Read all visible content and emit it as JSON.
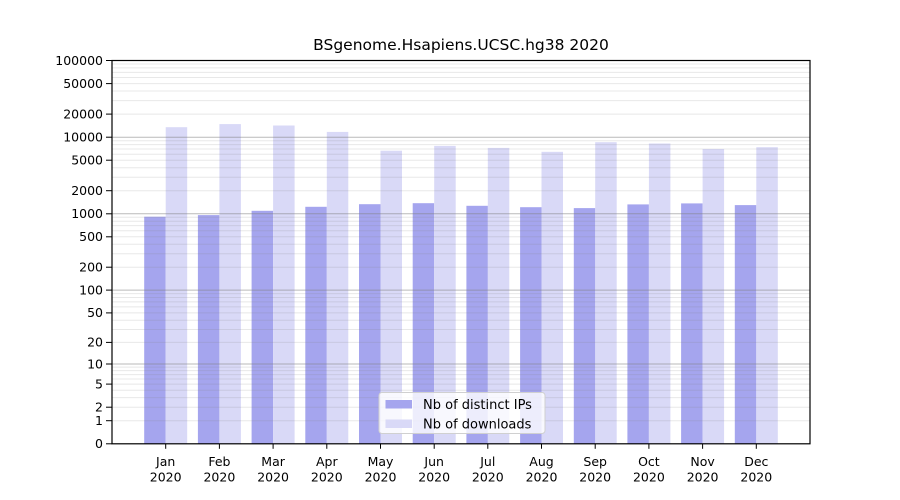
{
  "title": "BSgenome.Hsapiens.UCSC.hg38 2020",
  "colors": {
    "ips_bar": "#a5a5ee",
    "downloads_bar": "#d9d9f7",
    "grid_minor": "rgba(130,130,130,0.18)",
    "grid_major": "rgba(130,130,130,0.55)",
    "axis": "#000000",
    "legend_border": "#d0d0d0",
    "legend_bg": "rgba(255,255,255,0.8)"
  },
  "y_axis": {
    "ticks": [
      100000,
      50000,
      20000,
      10000,
      5000,
      2000,
      1000,
      500,
      200,
      100,
      50,
      20,
      10,
      5,
      2,
      1,
      0
    ],
    "scale": "log10(1+v)"
  },
  "legend": {
    "entries": [
      {
        "label": "Nb of distinct IPs",
        "color_key": "ips_bar"
      },
      {
        "label": "Nb of downloads",
        "color_key": "downloads_bar"
      }
    ]
  },
  "chart_data": {
    "type": "bar",
    "title": "BSgenome.Hsapiens.UCSC.hg38 2020",
    "categories": [
      "Jan 2020",
      "Feb 2020",
      "Mar 2020",
      "Apr 2020",
      "May 2020",
      "Jun 2020",
      "Jul 2020",
      "Aug 2020",
      "Sep 2020",
      "Oct 2020",
      "Nov 2020",
      "Dec 2020"
    ],
    "series": [
      {
        "name": "Nb of distinct IPs",
        "color": "#a5a5ee",
        "values": [
          915,
          960,
          1095,
          1235,
          1335,
          1375,
          1270,
          1220,
          1185,
          1325,
          1365,
          1300
        ]
      },
      {
        "name": "Nb of downloads",
        "color": "#d9d9f7",
        "values": [
          13500,
          14800,
          14200,
          11700,
          6650,
          7700,
          7250,
          6450,
          8600,
          8270,
          7000,
          7400
        ]
      }
    ],
    "yscale": "log1p",
    "ylim": [
      0,
      100000
    ],
    "xlabel": "",
    "ylabel": "",
    "grid": true,
    "legend_position": "bottom-center"
  }
}
